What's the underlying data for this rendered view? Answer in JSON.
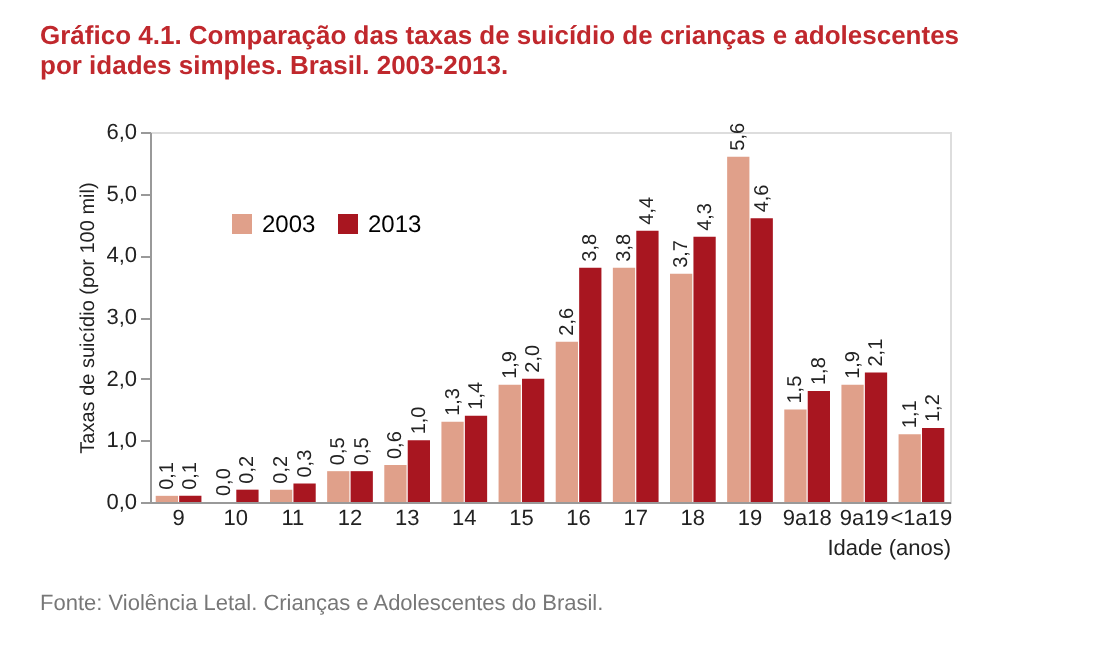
{
  "chart_data": {
    "type": "bar",
    "title": [
      "Gráfico 4.1. Comparação das taxas de suicídio de crianças e adolescentes",
      "por idades simples. Brasil. 2003-2013."
    ],
    "xlabel": "Idade (anos)",
    "ylabel": "Taxas de suicídio (por 100 mil)",
    "categories": [
      "9",
      "10",
      "11",
      "12",
      "13",
      "14",
      "15",
      "16",
      "17",
      "18",
      "19",
      "9a18",
      "9a19",
      "<1a19"
    ],
    "series": [
      {
        "name": "2003",
        "color": "#e0a08a",
        "values": [
          0.1,
          0.0,
          0.2,
          0.5,
          0.6,
          1.3,
          1.9,
          2.6,
          3.8,
          3.7,
          5.6,
          1.5,
          1.9,
          1.1
        ],
        "value_labels": [
          "0,1",
          "0,0",
          "0,2",
          "0,5",
          "0,6",
          "1,3",
          "1,9",
          "2,6",
          "3,8",
          "3,7",
          "5,6",
          "1,5",
          "1,9",
          "1,1"
        ]
      },
      {
        "name": "2013",
        "color": "#a81620",
        "values": [
          0.1,
          0.2,
          0.3,
          0.5,
          1.0,
          1.4,
          2.0,
          3.8,
          4.4,
          4.3,
          4.6,
          1.8,
          2.1,
          1.2
        ],
        "value_labels": [
          "0,1",
          "0,2",
          "0,3",
          "0,5",
          "1,0",
          "1,4",
          "2,0",
          "3,8",
          "4,4",
          "4,3",
          "4,6",
          "1,8",
          "2,1",
          "1,2"
        ]
      }
    ],
    "ylim": [
      0,
      6
    ],
    "yticks": [
      {
        "value": 0,
        "label": "0,0"
      },
      {
        "value": 1,
        "label": "1,0"
      },
      {
        "value": 2,
        "label": "2,0"
      },
      {
        "value": 3,
        "label": "3,0"
      },
      {
        "value": 4,
        "label": "4,0"
      },
      {
        "value": 5,
        "label": "5,0"
      },
      {
        "value": 6,
        "label": "6,0"
      }
    ],
    "grid": false,
    "legend": "top left",
    "annotations": [
      "Fonte: Violência Letal. Crianças e Adolescentes do Brasil."
    ]
  }
}
